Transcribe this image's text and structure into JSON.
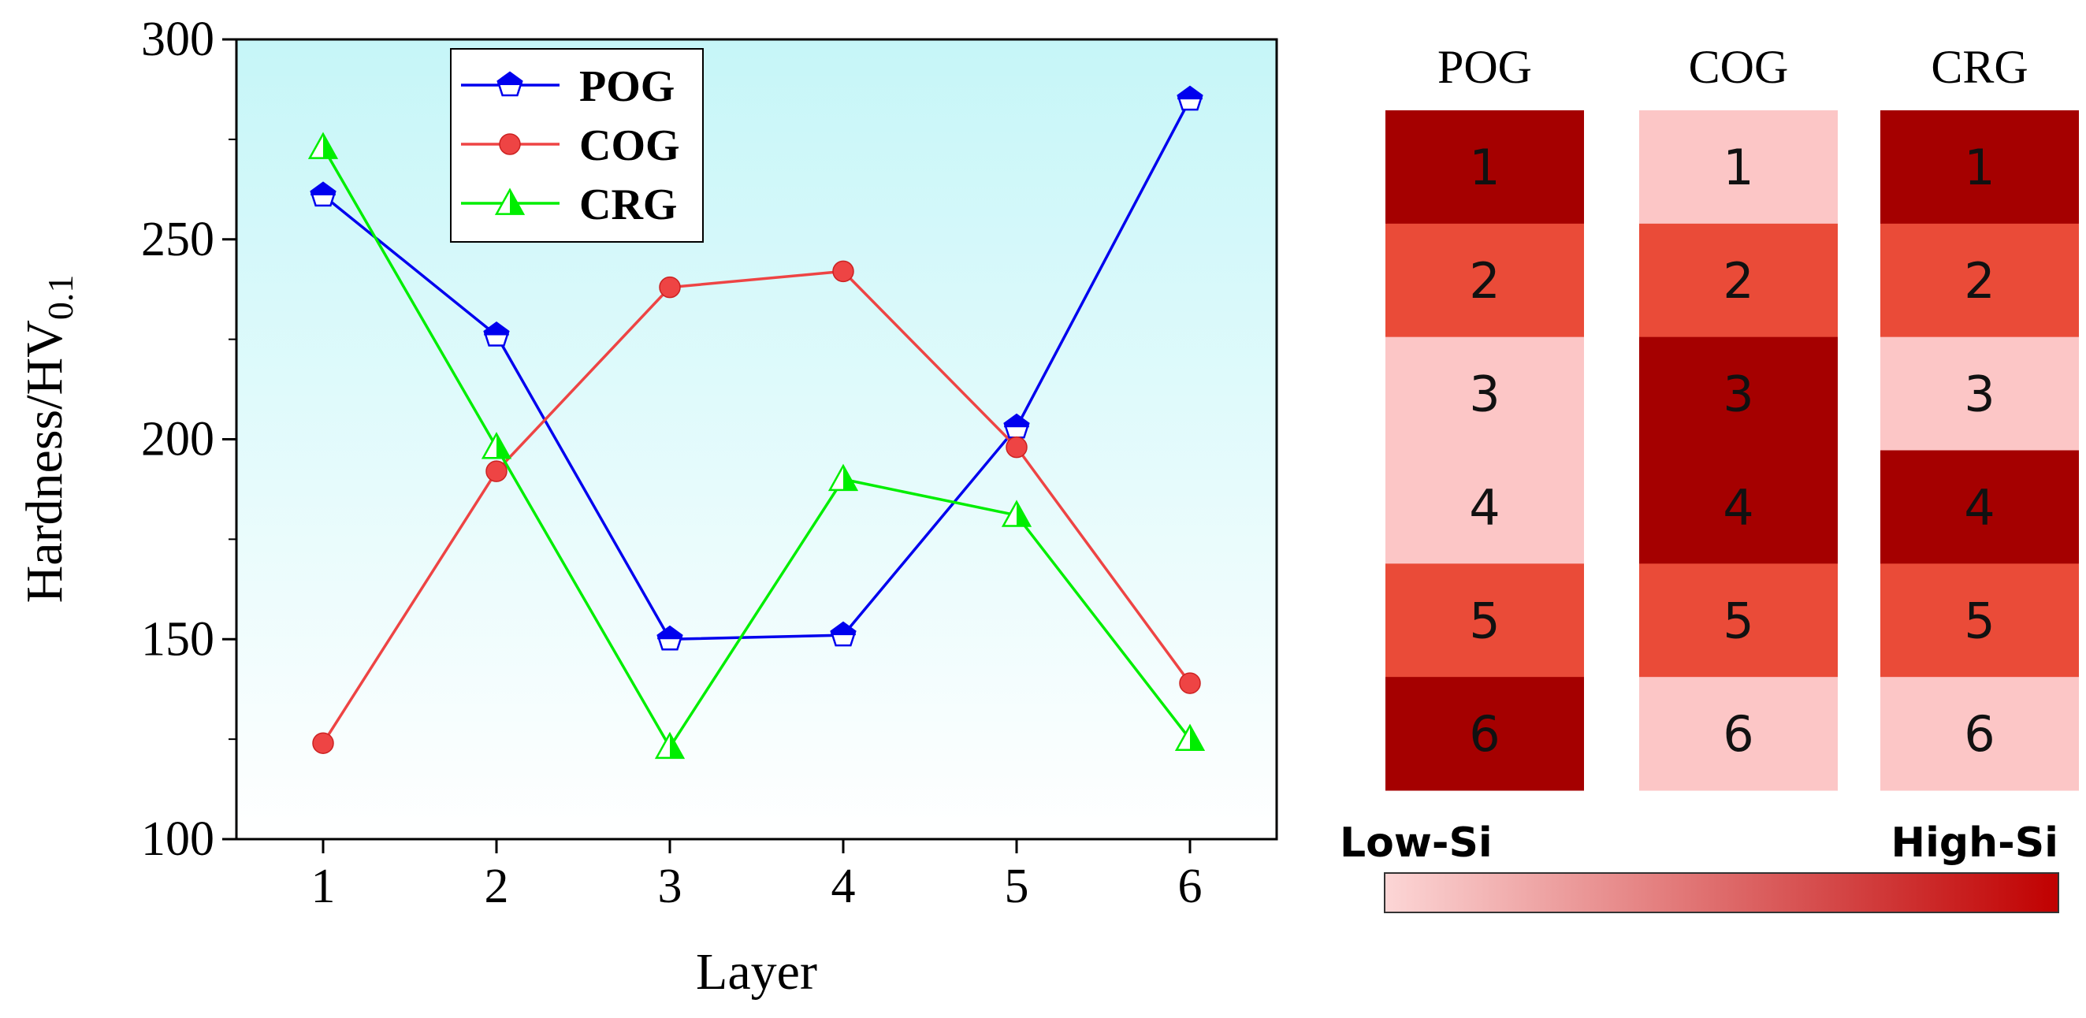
{
  "chart_data": [
    {
      "type": "line",
      "xlabel": "Layer",
      "ylabel": "Hardness/HV",
      "ylabel_subscript": "0.1",
      "x": [
        1,
        2,
        3,
        4,
        5,
        6
      ],
      "xlim": [
        0.5,
        6.5
      ],
      "ylim": [
        100,
        300
      ],
      "xticks": [
        "1",
        "2",
        "3",
        "4",
        "5",
        "6"
      ],
      "yticks": [
        "100",
        "150",
        "200",
        "250",
        "300"
      ],
      "legend_position": "top-left",
      "series": [
        {
          "name": "POG",
          "color": "#0000ee",
          "marker": "pentagon",
          "values": [
            261,
            226,
            150,
            151,
            203,
            285
          ]
        },
        {
          "name": "COG",
          "color": "#ee4444",
          "marker": "circle",
          "values": [
            124,
            192,
            238,
            242,
            198,
            139
          ]
        },
        {
          "name": "CRG",
          "color": "#00ee00",
          "marker": "triangle",
          "values": [
            273,
            198,
            123,
            190,
            181,
            125
          ]
        }
      ]
    },
    {
      "type": "heatmap",
      "columns": [
        {
          "name": "POG",
          "cells": [
            {
              "label": "1",
              "si_level": "high"
            },
            {
              "label": "2",
              "si_level": "medium"
            },
            {
              "label": "3",
              "si_level": "low"
            },
            {
              "label": "4",
              "si_level": "low"
            },
            {
              "label": "5",
              "si_level": "medium"
            },
            {
              "label": "6",
              "si_level": "high"
            }
          ]
        },
        {
          "name": "COG",
          "cells": [
            {
              "label": "1",
              "si_level": "low"
            },
            {
              "label": "2",
              "si_level": "medium"
            },
            {
              "label": "3",
              "si_level": "high"
            },
            {
              "label": "4",
              "si_level": "high"
            },
            {
              "label": "5",
              "si_level": "medium"
            },
            {
              "label": "6",
              "si_level": "low"
            }
          ]
        },
        {
          "name": "CRG",
          "cells": [
            {
              "label": "1",
              "si_level": "high"
            },
            {
              "label": "2",
              "si_level": "medium"
            },
            {
              "label": "3",
              "si_level": "low"
            },
            {
              "label": "4",
              "si_level": "high"
            },
            {
              "label": "5",
              "si_level": "medium"
            },
            {
              "label": "6",
              "si_level": "low"
            }
          ]
        }
      ],
      "level_colors": {
        "low": "#fcc6c6",
        "medium": "#ea4b38",
        "high": "#a50000"
      },
      "colorbar": {
        "low_label": "Low-Si",
        "high_label": "High-Si",
        "gradient_from": "#fcd6d6",
        "gradient_to": "#c00000"
      }
    }
  ]
}
